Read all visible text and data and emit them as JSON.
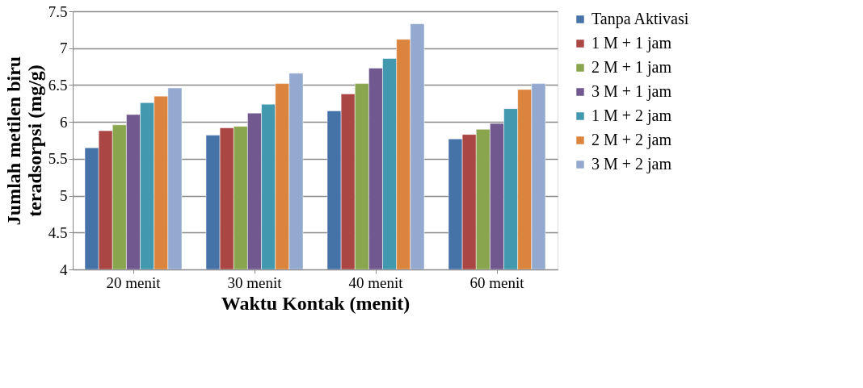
{
  "chart_data": {
    "type": "bar",
    "xlabel": "Waktu Kontak (menit)",
    "ylabel": "Jumlah metilen biru\nteradsorpsi (mg/g)",
    "categories": [
      "20 menit",
      "30 menit",
      "40 menit",
      "60 menit"
    ],
    "series": [
      {
        "name": "Tanpa Aktivasi",
        "color": "#4572a7",
        "values": [
          5.65,
          5.82,
          6.15,
          5.77
        ]
      },
      {
        "name": "1 M + 1 jam",
        "color": "#aa4643",
        "values": [
          5.88,
          5.92,
          6.38,
          5.83
        ]
      },
      {
        "name": "2 M + 1 jam",
        "color": "#89a54e",
        "values": [
          5.96,
          5.94,
          6.52,
          5.9
        ]
      },
      {
        "name": "3 M + 1 jam",
        "color": "#71588f",
        "values": [
          6.1,
          6.12,
          6.73,
          5.98
        ]
      },
      {
        "name": "1 M + 2 jam",
        "color": "#4198af",
        "values": [
          6.26,
          6.24,
          6.86,
          6.18
        ]
      },
      {
        "name": "2 M + 2 jam",
        "color": "#db843d",
        "values": [
          6.35,
          6.52,
          7.12,
          6.44
        ]
      },
      {
        "name": "3 M + 2 jam",
        "color": "#93a9cf",
        "values": [
          6.46,
          6.66,
          7.33,
          6.52
        ]
      }
    ],
    "ylim": [
      4,
      7.5
    ],
    "yticks": [
      4,
      4.5,
      5,
      5.5,
      6,
      6.5,
      7,
      7.5
    ],
    "grid": "y",
    "legend": "right"
  }
}
